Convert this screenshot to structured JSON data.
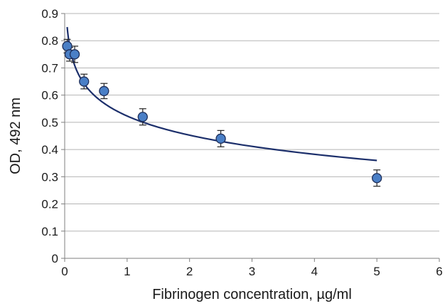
{
  "chart_data": {
    "type": "scatter",
    "title": "",
    "xlabel": "Fibrinogen concentration, µg/ml",
    "ylabel": "OD, 492 nm",
    "xlim": [
      0,
      6
    ],
    "ylim": [
      0,
      0.9
    ],
    "x_ticks": [
      "0",
      "1",
      "2",
      "3",
      "4",
      "5",
      "6"
    ],
    "y_ticks": [
      "0",
      "0.1",
      "0.2",
      "0.3",
      "0.4",
      "0.5",
      "0.6",
      "0.7",
      "0.8",
      "0.9"
    ],
    "grid": "horizontal",
    "legend": "none",
    "series": [
      {
        "points": [
          {
            "x": 0.04,
            "y": 0.78,
            "err": 0.025
          },
          {
            "x": 0.08,
            "y": 0.75,
            "err": 0.025
          },
          {
            "x": 0.16,
            "y": 0.75,
            "err": 0.03
          },
          {
            "x": 0.31,
            "y": 0.65,
            "err": 0.027
          },
          {
            "x": 0.63,
            "y": 0.615,
            "err": 0.028
          },
          {
            "x": 1.25,
            "y": 0.52,
            "err": 0.03
          },
          {
            "x": 2.5,
            "y": 0.44,
            "err": 0.03
          },
          {
            "x": 5.0,
            "y": 0.295,
            "err": 0.03
          }
        ]
      }
    ],
    "trendline": {
      "type": "logarithmic",
      "a": 0.5232,
      "b": -0.1016,
      "x_range": [
        0.04,
        5.0
      ]
    },
    "colors": {
      "marker_fill": "#4a7fc6",
      "marker_stroke": "#1f2f5a",
      "trendline": "#1c2f6b",
      "grid": "#b5b5b5",
      "axis": "#7f7f7f"
    }
  }
}
